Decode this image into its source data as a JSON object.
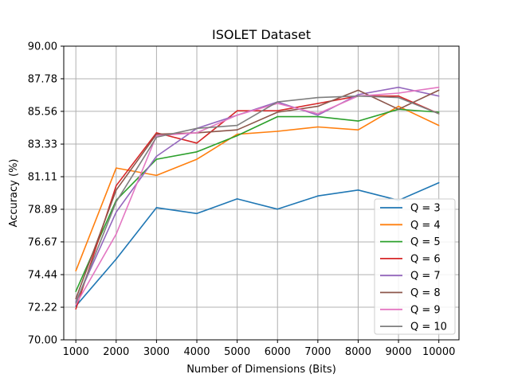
{
  "chart_data": {
    "type": "line",
    "title": "ISOLET Dataset",
    "xlabel": "Number of Dimensions (Bits)",
    "ylabel": "Accuracy (%)",
    "x": [
      1000,
      2000,
      3000,
      4000,
      5000,
      6000,
      7000,
      8000,
      9000,
      10000
    ],
    "x_tick_labels": [
      "1000",
      "2000",
      "3000",
      "4000",
      "5000",
      "6000",
      "7000",
      "8000",
      "9000",
      "10000"
    ],
    "y_ticks": [
      70.0,
      72.22,
      74.44,
      76.67,
      78.89,
      81.11,
      83.33,
      85.56,
      87.78,
      90.0
    ],
    "y_tick_labels": [
      "70.00",
      "72.22",
      "74.44",
      "76.67",
      "78.89",
      "81.11",
      "83.33",
      "85.56",
      "87.78",
      "90.00"
    ],
    "xlim": [
      700,
      10500
    ],
    "ylim": [
      70.0,
      90.0
    ],
    "grid": true,
    "legend_position": "lower-right",
    "series": [
      {
        "name": "Q = 3",
        "color": "#1f77b4",
        "values": [
          72.3,
          75.5,
          79.0,
          78.6,
          79.6,
          78.9,
          79.8,
          80.2,
          79.5,
          80.7
        ]
      },
      {
        "name": "Q = 4",
        "color": "#ff7f0e",
        "values": [
          74.7,
          81.7,
          81.2,
          82.3,
          84.0,
          84.2,
          84.5,
          84.3,
          85.9,
          84.6
        ]
      },
      {
        "name": "Q = 5",
        "color": "#2ca02c",
        "values": [
          73.3,
          79.5,
          82.3,
          82.8,
          83.9,
          85.2,
          85.2,
          84.9,
          85.7,
          85.5
        ]
      },
      {
        "name": "Q = 6",
        "color": "#d62728",
        "values": [
          72.1,
          80.5,
          84.1,
          83.4,
          85.6,
          85.6,
          86.1,
          86.6,
          86.6,
          85.4
        ]
      },
      {
        "name": "Q = 7",
        "color": "#9467bd",
        "values": [
          72.6,
          78.7,
          82.5,
          84.4,
          85.3,
          86.2,
          85.3,
          86.7,
          87.2,
          86.6
        ]
      },
      {
        "name": "Q = 8",
        "color": "#8c564b",
        "values": [
          72.8,
          80.2,
          84.0,
          84.1,
          84.3,
          85.5,
          85.9,
          87.0,
          85.7,
          87.0
        ]
      },
      {
        "name": "Q = 9",
        "color": "#e377c2",
        "values": [
          72.4,
          77.2,
          83.9,
          84.1,
          85.3,
          86.1,
          85.4,
          86.6,
          86.8,
          87.2
        ]
      },
      {
        "name": "Q = 10",
        "color": "#7f7f7f",
        "values": [
          72.5,
          79.4,
          83.8,
          84.4,
          84.6,
          86.2,
          86.5,
          86.6,
          86.5,
          85.4
        ]
      }
    ]
  }
}
